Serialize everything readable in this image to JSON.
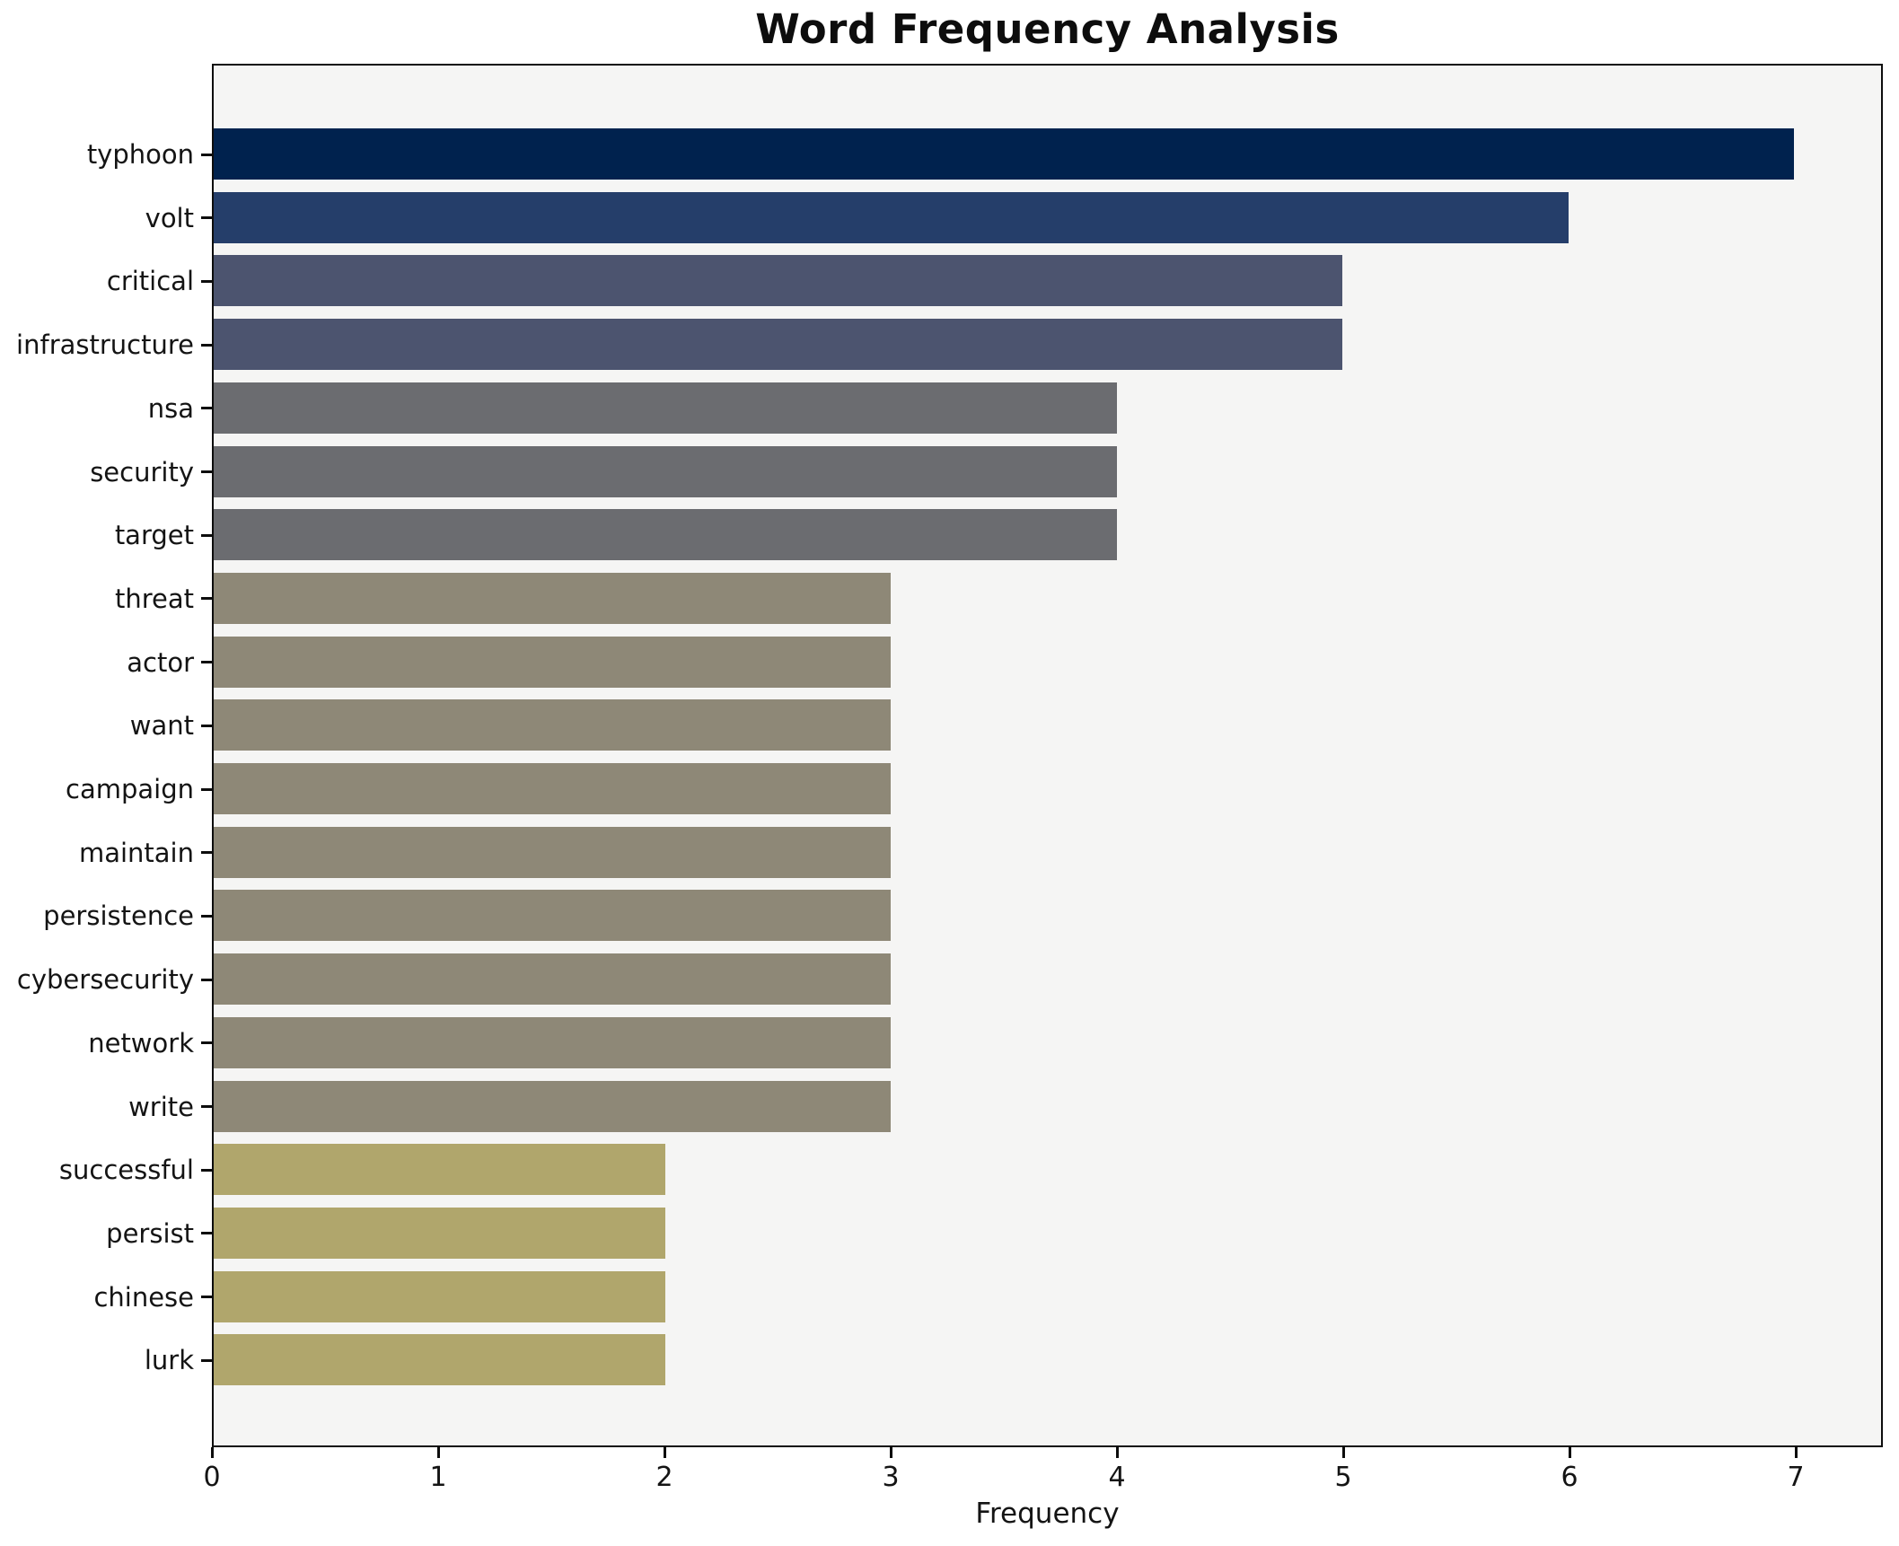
{
  "chart_data": {
    "type": "bar",
    "orientation": "horizontal",
    "title": "Word Frequency Analysis",
    "xlabel": "Frequency",
    "ylabel": "",
    "categories": [
      "typhoon",
      "volt",
      "critical",
      "infrastructure",
      "nsa",
      "security",
      "target",
      "threat",
      "actor",
      "want",
      "campaign",
      "maintain",
      "persistence",
      "cybersecurity",
      "network",
      "write",
      "successful",
      "persist",
      "chinese",
      "lurk"
    ],
    "values": [
      7,
      6,
      5,
      5,
      4,
      4,
      4,
      3,
      3,
      3,
      3,
      3,
      3,
      3,
      3,
      3,
      2,
      2,
      2,
      2
    ],
    "xticks": [
      0,
      1,
      2,
      3,
      4,
      5,
      6,
      7
    ],
    "xlim": [
      0,
      7.385
    ],
    "grid": "off",
    "legend": "none",
    "colors_by_value": {
      "7": "#00224e",
      "6": "#253e6a",
      "5": "#4c546f",
      "4": "#6b6c70",
      "3": "#8e8877",
      "2": "#b0a66c"
    },
    "plot_background": "#f5f5f4",
    "figure_background": "#ffffff",
    "frame_color": "#0d0d0d"
  }
}
